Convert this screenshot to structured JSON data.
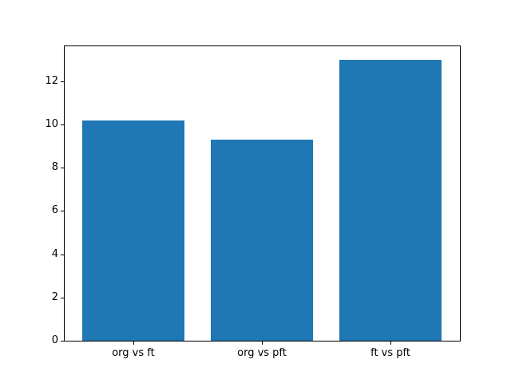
{
  "chart_data": {
    "type": "bar",
    "title": "",
    "xlabel": "",
    "ylabel": "",
    "categories": [
      "org vs ft",
      "org vs pft",
      "ft vs pft"
    ],
    "values": [
      10.2,
      9.3,
      13.0
    ],
    "yticks": [
      0,
      2,
      4,
      6,
      8,
      10,
      12
    ],
    "ytick_labels": [
      "0",
      "2",
      "4",
      "6",
      "8",
      "10",
      "12"
    ],
    "ylim": [
      0,
      13.65
    ],
    "xlim": [
      -0.54,
      2.54
    ],
    "bar_width_fraction": 0.8,
    "bar_color": "#1f77b4",
    "spine_color": "#000000",
    "tick_color": "#000000",
    "axes_background": "#ffffff",
    "figure_background": "#ffffff",
    "grid": false,
    "legend": null
  }
}
